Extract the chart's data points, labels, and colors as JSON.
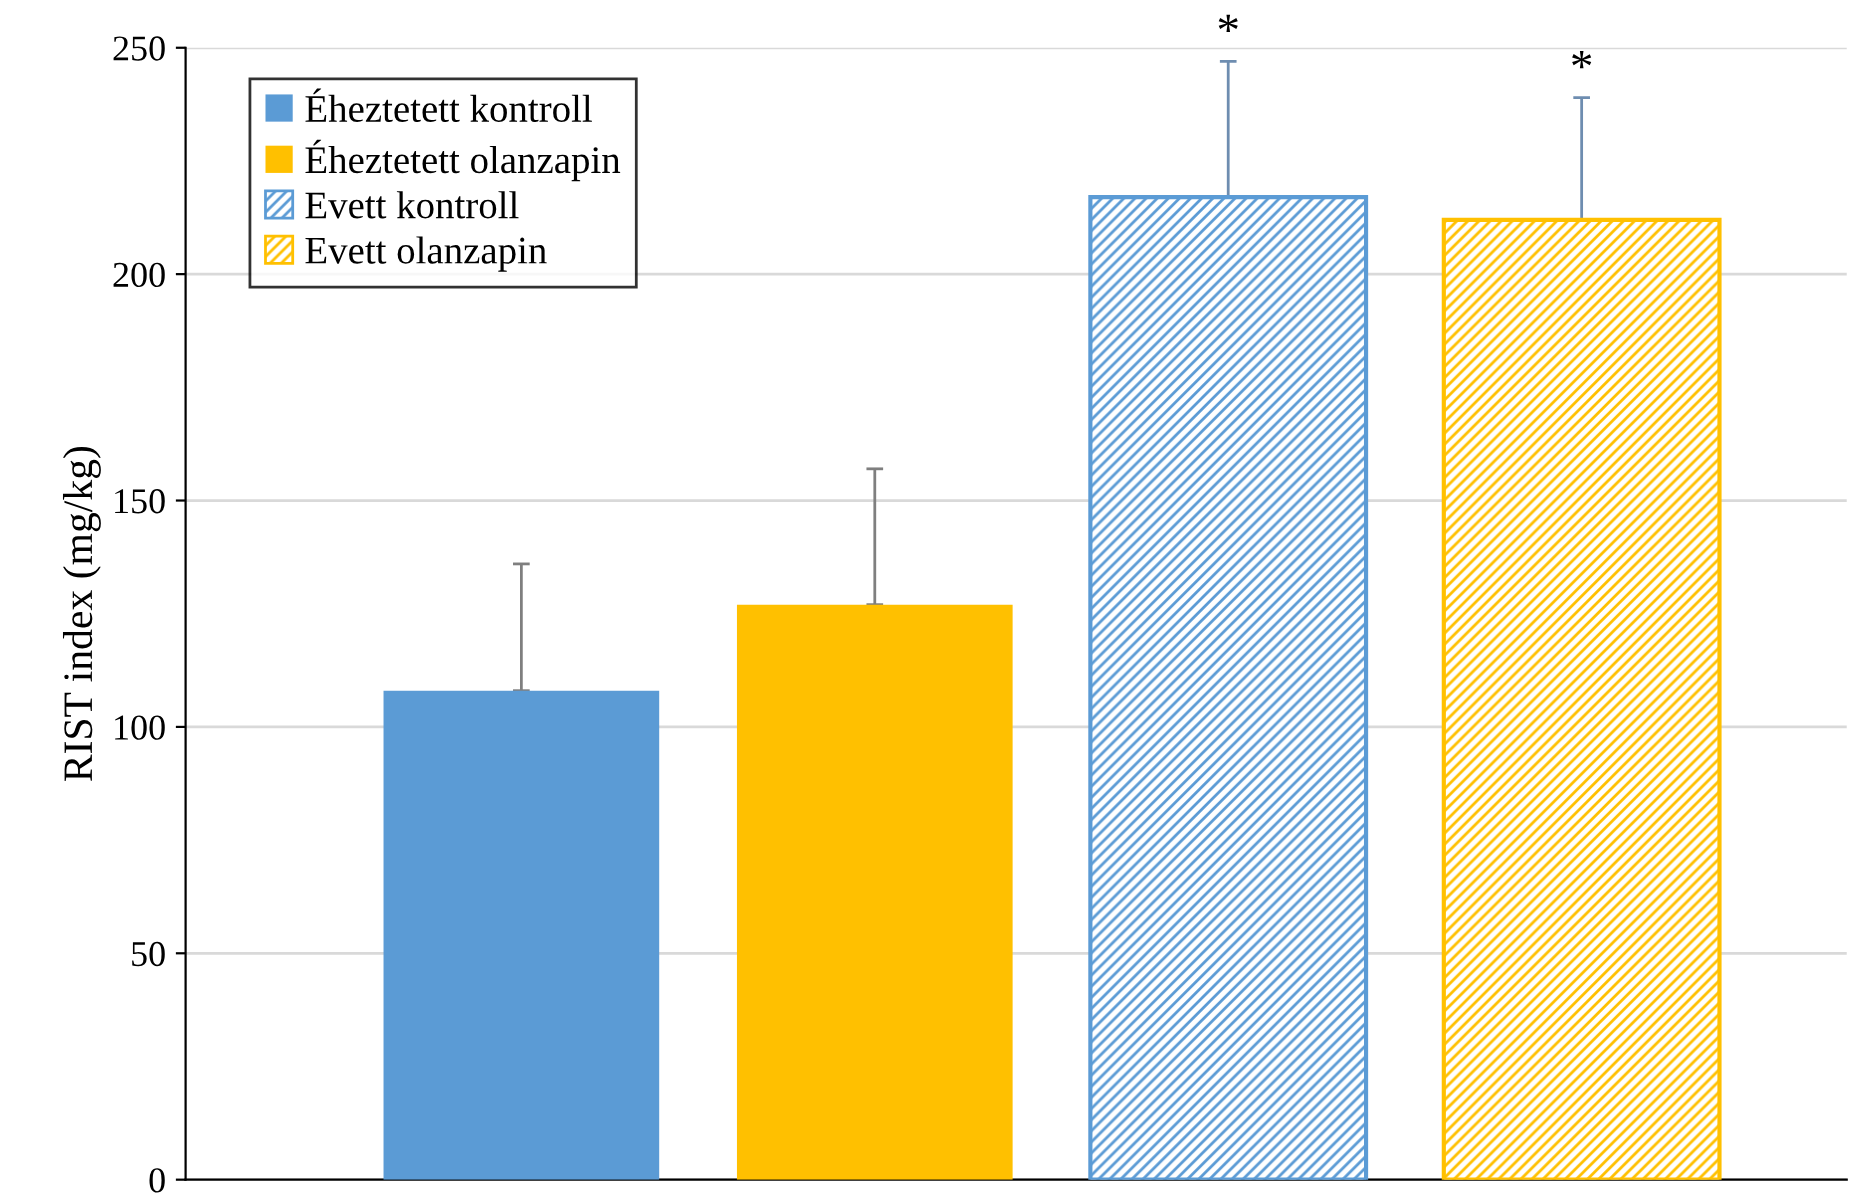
{
  "chart_data": {
    "type": "bar",
    "ylabel": "RIST index (mg/kg)",
    "categories": [
      null,
      null,
      null,
      null
    ],
    "series": [
      {
        "name": "Éheztetett kontroll",
        "color": "#5b9bd5",
        "values": [
          108,
          null,
          null,
          null
        ],
        "errors": [
          [
            108,
            136
          ],
          null,
          null,
          null
        ]
      },
      {
        "name": "Éheztetett olanzapin",
        "color": "#ffc000",
        "values": [
          null,
          127,
          null,
          null
        ],
        "errors": [
          null,
          [
            127,
            157
          ],
          null,
          null
        ]
      },
      {
        "name": "Evett kontroll",
        "color": "#5b9bd5",
        "values": [
          null,
          null,
          217,
          null
        ],
        "errors": [
          null,
          null,
          [
            217,
            247
          ],
          null
        ]
      },
      {
        "name": "Evett olanzapin",
        "color": "#ffc000",
        "values": [
          null,
          null,
          null,
          212
        ],
        "errors": [
          null,
          null,
          null,
          [
            212,
            239
          ]
        ]
      }
    ],
    "annotations": [
      "*",
      "*"
    ],
    "ylim": [
      0,
      250
    ],
    "yticks": [
      0,
      50,
      100,
      150,
      200,
      250
    ],
    "grid": "y",
    "legend": "top left"
  }
}
